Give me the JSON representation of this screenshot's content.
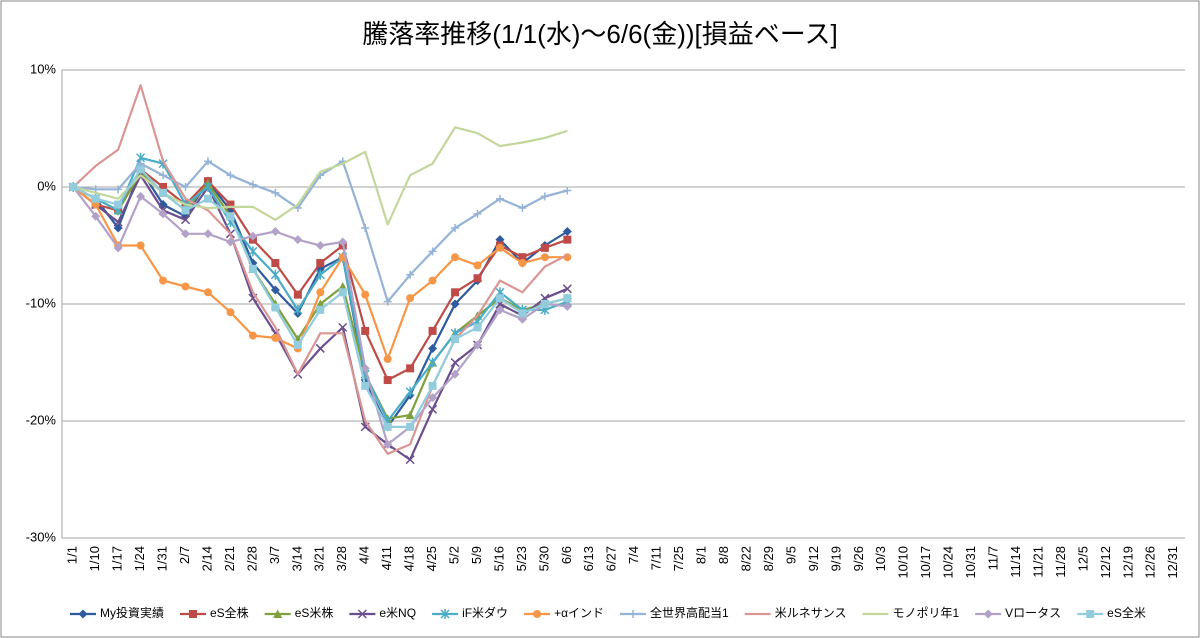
{
  "chart_data": {
    "type": "line",
    "title": "騰落率推移(1/1(水)～6/6(金))[損益ベース]",
    "categories": [
      "1/1",
      "1/10",
      "1/17",
      "1/24",
      "1/31",
      "2/7",
      "2/14",
      "2/21",
      "2/28",
      "3/7",
      "3/14",
      "3/21",
      "3/28",
      "4/4",
      "4/11",
      "4/18",
      "4/25",
      "5/2",
      "5/9",
      "5/16",
      "5/23",
      "5/30",
      "6/6",
      "6/13",
      "6/27",
      "7/4",
      "7/11",
      "7/25",
      "8/1",
      "8/8",
      "8/22",
      "8/29",
      "9/5",
      "9/12",
      "9/19",
      "9/26",
      "10/3",
      "10/10",
      "10/17",
      "10/24",
      "10/31",
      "11/7",
      "11/14",
      "11/21",
      "11/28",
      "12/5",
      "12/12",
      "12/19",
      "12/26",
      "12/31"
    ],
    "ylim": [
      -30,
      10
    ],
    "yticks": [
      {
        "value": -30,
        "label": "-30%"
      },
      {
        "value": -20,
        "label": "-20%"
      },
      {
        "value": -10,
        "label": "-10%"
      },
      {
        "value": 0,
        "label": "0%"
      },
      {
        "value": 10,
        "label": "10%"
      }
    ],
    "grid": true,
    "legend": "bottom",
    "series": [
      {
        "name": "My投資実績",
        "color": "#2e5a9e",
        "marker": "diamond",
        "values": [
          0,
          -1,
          -3.5,
          1.5,
          -1.5,
          -2.5,
          0.5,
          -2,
          -6.5,
          -8.8,
          -10.8,
          -7,
          -6,
          -16.5,
          -20.5,
          -17.8,
          -13.8,
          -10,
          -8,
          -4.5,
          -6.5,
          -5,
          -3.8,
          null,
          null,
          null,
          null,
          null,
          null,
          null,
          null,
          null,
          null,
          null,
          null,
          null,
          null,
          null,
          null,
          null,
          null,
          null,
          null,
          null,
          null,
          null,
          null,
          null,
          null,
          null
        ]
      },
      {
        "name": "eS全株",
        "color": "#be4b48",
        "marker": "square",
        "values": [
          0,
          -1.5,
          -2,
          1.5,
          0,
          -1.5,
          0.5,
          -1.5,
          -4.5,
          -6.5,
          -9.2,
          -6.5,
          -5,
          -12.3,
          -16.5,
          -15.5,
          -12.3,
          -9,
          -7.8,
          -5,
          -6,
          -5.2,
          -4.5,
          null,
          null,
          null,
          null,
          null,
          null,
          null,
          null,
          null,
          null,
          null,
          null,
          null,
          null,
          null,
          null,
          null,
          null,
          null,
          null,
          null,
          null,
          null,
          null,
          null,
          null,
          null
        ]
      },
      {
        "name": "eS米株",
        "color": "#7fa03c",
        "marker": "triangle",
        "values": [
          0,
          -1,
          -2,
          1.2,
          -0.5,
          -2,
          0.3,
          -2.5,
          -7,
          -10,
          -13,
          -10,
          -8.5,
          -16,
          -19.8,
          -19.5,
          -15,
          -12.5,
          -11,
          -9.5,
          -10.5,
          -10,
          -9.5,
          null,
          null,
          null,
          null,
          null,
          null,
          null,
          null,
          null,
          null,
          null,
          null,
          null,
          null,
          null,
          null,
          null,
          null,
          null,
          null,
          null,
          null,
          null,
          null,
          null,
          null,
          null
        ]
      },
      {
        "name": "e米NQ",
        "color": "#6a4e8e",
        "marker": "x",
        "values": [
          0,
          -1.5,
          -3,
          1,
          -2,
          -2.8,
          0,
          -4,
          -9.5,
          -12.5,
          -16,
          -13.8,
          -12,
          -20.5,
          -22,
          -23.3,
          -19,
          -15,
          -13.5,
          -10,
          -11,
          -9.5,
          -8.7,
          null,
          null,
          null,
          null,
          null,
          null,
          null,
          null,
          null,
          null,
          null,
          null,
          null,
          null,
          null,
          null,
          null,
          null,
          null,
          null,
          null,
          null,
          null,
          null,
          null,
          null,
          null
        ]
      },
      {
        "name": "iF米ダウ",
        "color": "#4bacc6",
        "marker": "star",
        "values": [
          0,
          -1,
          -2,
          2.5,
          2,
          -1.5,
          0,
          -3,
          -5.5,
          -7.5,
          -10.5,
          -7.5,
          -6,
          -16,
          -20,
          -17.5,
          -15,
          -12.5,
          -11.5,
          -9,
          -10.5,
          -10.5,
          -9.8,
          null,
          null,
          null,
          null,
          null,
          null,
          null,
          null,
          null,
          null,
          null,
          null,
          null,
          null,
          null,
          null,
          null,
          null,
          null,
          null,
          null,
          null,
          null,
          null,
          null,
          null,
          null
        ]
      },
      {
        "name": "+αインド",
        "color": "#f79646",
        "marker": "circle",
        "values": [
          0,
          -1.5,
          -5,
          -5,
          -8,
          -8.5,
          -9,
          -10.7,
          -12.7,
          -12.9,
          -13.8,
          -9,
          -6,
          -9.2,
          -14.7,
          -9.5,
          -8,
          -6,
          -6.7,
          -5.2,
          -6.5,
          -6,
          -6,
          null,
          null,
          null,
          null,
          null,
          null,
          null,
          null,
          null,
          null,
          null,
          null,
          null,
          null,
          null,
          null,
          null,
          null,
          null,
          null,
          null,
          null,
          null,
          null,
          null,
          null,
          null
        ]
      },
      {
        "name": "全世界高配当1",
        "color": "#95b3d7",
        "marker": "plus",
        "values": [
          0,
          -0.2,
          -0.2,
          2,
          1,
          0,
          2.2,
          1,
          0.2,
          -0.5,
          -1.8,
          1,
          2.2,
          -3.5,
          -9.8,
          -7.5,
          -5.5,
          -3.5,
          -2.3,
          -1,
          -1.8,
          -0.8,
          -0.3,
          null,
          null,
          null,
          null,
          null,
          null,
          null,
          null,
          null,
          null,
          null,
          null,
          null,
          null,
          null,
          null,
          null,
          null,
          null,
          null,
          null,
          null,
          null,
          null,
          null,
          null,
          null
        ]
      },
      {
        "name": "米ルネサンス",
        "color": "#d99694",
        "marker": "none",
        "values": [
          0,
          1.8,
          3.2,
          8.7,
          2.2,
          -1,
          -2,
          -4,
          -9,
          -12,
          -16,
          -12.5,
          -12.5,
          -20,
          -22.8,
          -22,
          -17,
          -13,
          -11,
          -8,
          -9,
          -6.8,
          -5.8,
          null,
          null,
          null,
          null,
          null,
          null,
          null,
          null,
          null,
          null,
          null,
          null,
          null,
          null,
          null,
          null,
          null,
          null,
          null,
          null,
          null,
          null,
          null,
          null,
          null,
          null,
          null
        ]
      },
      {
        "name": "モノポリ年1",
        "color": "#c3d69b",
        "marker": "none",
        "values": [
          0,
          -0.5,
          -1,
          1,
          -0.5,
          -1.5,
          -1.8,
          -1.7,
          -1.7,
          -2.8,
          -1.5,
          1.3,
          2,
          3,
          -3.2,
          1,
          2,
          5.1,
          4.6,
          3.5,
          3.8,
          4.2,
          4.8,
          null,
          null,
          null,
          null,
          null,
          null,
          null,
          null,
          null,
          null,
          null,
          null,
          null,
          null,
          null,
          null,
          null,
          null,
          null,
          null,
          null,
          null,
          null,
          null,
          null,
          null,
          null
        ]
      },
      {
        "name": "Vロータス",
        "color": "#b3a2c7",
        "marker": "diamond",
        "values": [
          0,
          -2.5,
          -5.2,
          -0.8,
          -2.3,
          -4,
          -4,
          -4.7,
          -4.2,
          -3.8,
          -4.5,
          -5,
          -4.7,
          -15.5,
          -22,
          -20.5,
          -18,
          -16,
          -13.5,
          -10.5,
          -11.3,
          -10,
          -10.2,
          null,
          null,
          null,
          null,
          null,
          null,
          null,
          null,
          null,
          null,
          null,
          null,
          null,
          null,
          null,
          null,
          null,
          null,
          null,
          null,
          null,
          null,
          null,
          null,
          null,
          null,
          null
        ]
      },
      {
        "name": "eS全米",
        "color": "#93cddd",
        "marker": "square",
        "values": [
          0,
          -1,
          -1.5,
          1.5,
          -0.5,
          -2,
          -1,
          -2.5,
          -7,
          -10.3,
          -13.5,
          -10.5,
          -9,
          -17,
          -20.5,
          -20.5,
          -17,
          -13,
          -12,
          -9.5,
          -10.8,
          -10,
          -9.5,
          null,
          null,
          null,
          null,
          null,
          null,
          null,
          null,
          null,
          null,
          null,
          null,
          null,
          null,
          null,
          null,
          null,
          null,
          null,
          null,
          null,
          null,
          null,
          null,
          null,
          null,
          null
        ]
      }
    ]
  }
}
